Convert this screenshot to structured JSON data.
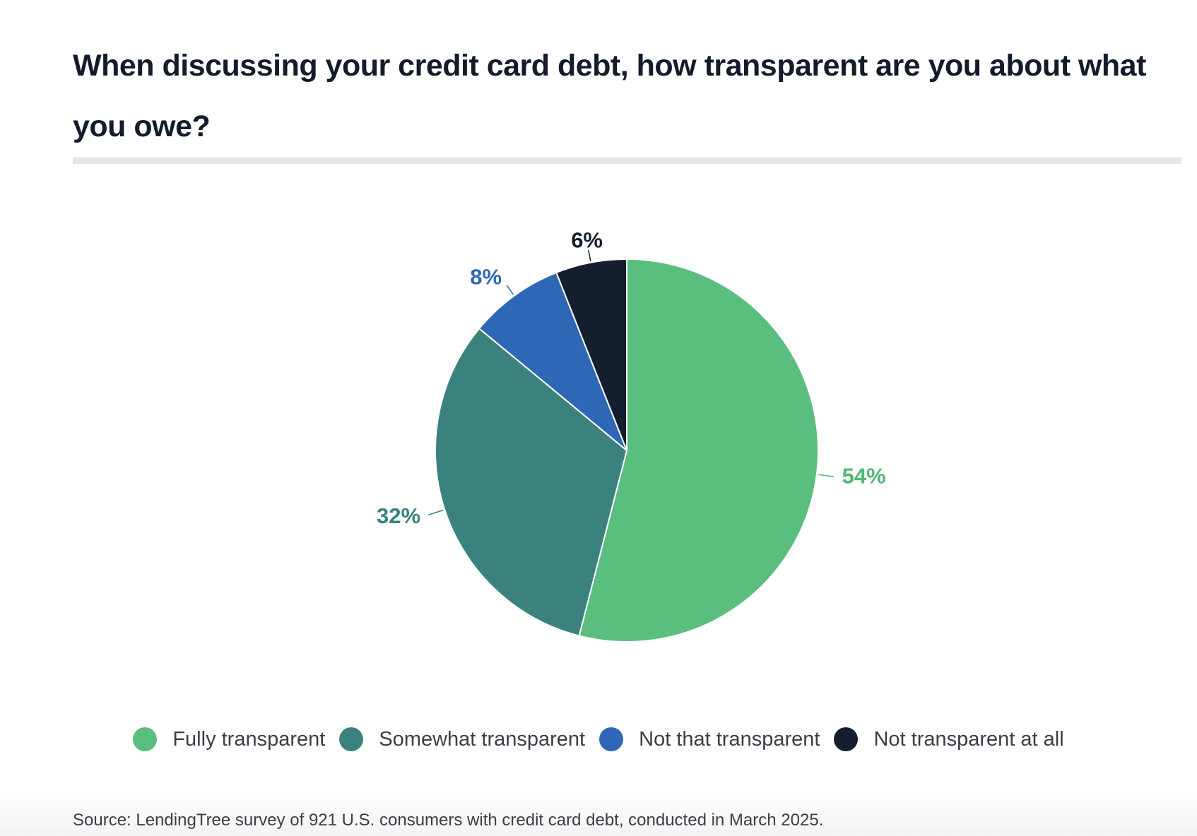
{
  "title": "When discussing your credit card debt, how transparent are you about what you owe?",
  "source": "Source: LendingTree survey of 921 U.S. consumers with credit card debt, conducted in March 2025.",
  "chart_data": {
    "type": "pie",
    "title": "When discussing your credit card debt, how transparent are you about what you owe?",
    "categories": [
      "Fully transparent",
      "Somewhat transparent",
      "Not that transparent",
      "Not transparent at all"
    ],
    "values": [
      54,
      32,
      8,
      6
    ],
    "labels": [
      "54%",
      "32%",
      "8%",
      "6%"
    ],
    "colors": [
      "#5abe7e",
      "#3b827f",
      "#2e67b5",
      "#141e2e"
    ],
    "label_colors": [
      "#4fb874",
      "#3b827f",
      "#2e67b5",
      "#141e2e"
    ],
    "legend_position": "bottom",
    "start": "12 o'clock, clockwise"
  }
}
